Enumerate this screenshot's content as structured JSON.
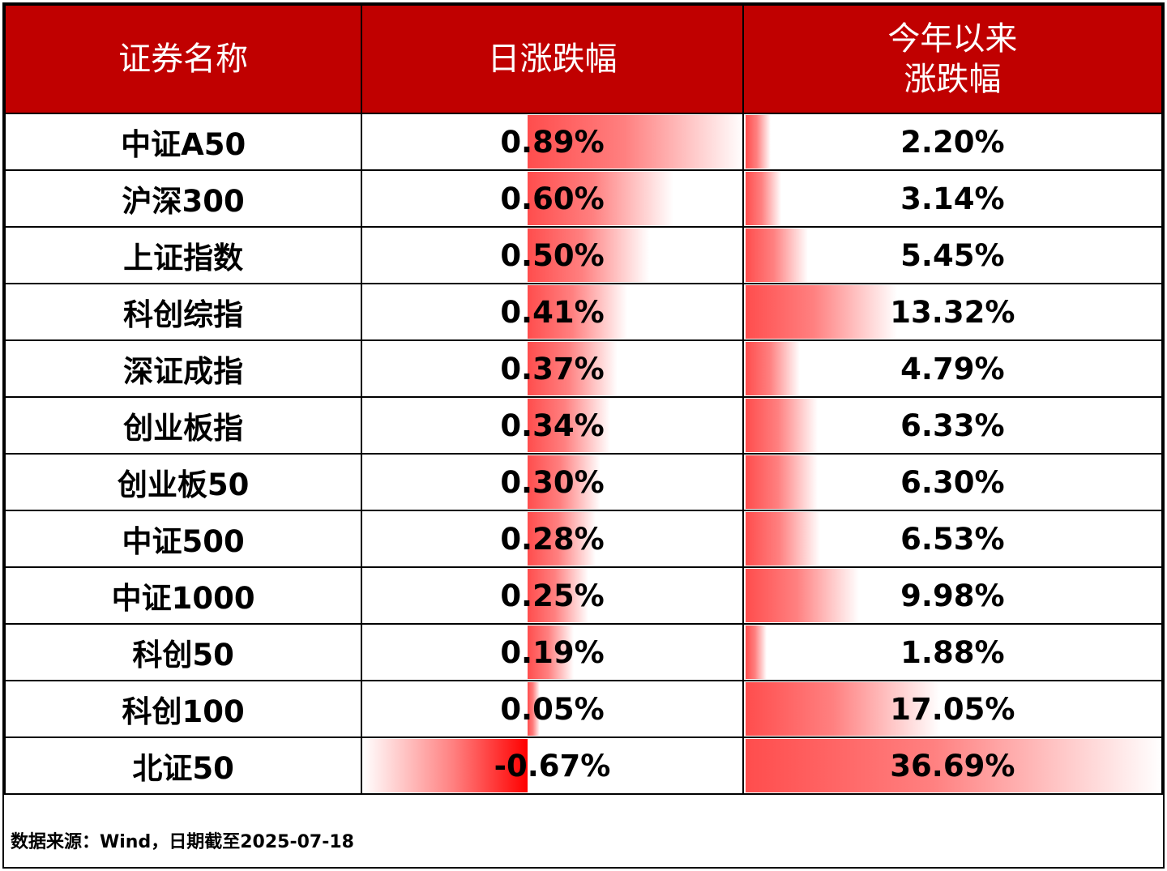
{
  "chart_data": {
    "type": "table",
    "columns": [
      "证券名称",
      "日涨跌幅",
      "今年以来\n涨跌幅"
    ],
    "rows": [
      {
        "name": "中证A50",
        "daily": 0.89,
        "daily_text": "0.89%",
        "ytd": 2.2,
        "ytd_text": "2.20%"
      },
      {
        "name": "沪深300",
        "daily": 0.6,
        "daily_text": "0.60%",
        "ytd": 3.14,
        "ytd_text": "3.14%"
      },
      {
        "name": "上证指数",
        "daily": 0.5,
        "daily_text": "0.50%",
        "ytd": 5.45,
        "ytd_text": "5.45%"
      },
      {
        "name": "科创综指",
        "daily": 0.41,
        "daily_text": "0.41%",
        "ytd": 13.32,
        "ytd_text": "13.32%"
      },
      {
        "name": "深证成指",
        "daily": 0.37,
        "daily_text": "0.37%",
        "ytd": 4.79,
        "ytd_text": "4.79%"
      },
      {
        "name": "创业板指",
        "daily": 0.34,
        "daily_text": "0.34%",
        "ytd": 6.33,
        "ytd_text": "6.33%"
      },
      {
        "name": "创业板50",
        "daily": 0.3,
        "daily_text": "0.30%",
        "ytd": 6.3,
        "ytd_text": "6.30%"
      },
      {
        "name": "中证500",
        "daily": 0.28,
        "daily_text": "0.28%",
        "ytd": 6.53,
        "ytd_text": "6.53%"
      },
      {
        "name": "中证1000",
        "daily": 0.25,
        "daily_text": "0.25%",
        "ytd": 9.98,
        "ytd_text": "9.98%"
      },
      {
        "name": "科创50",
        "daily": 0.19,
        "daily_text": "0.19%",
        "ytd": 1.88,
        "ytd_text": "1.88%"
      },
      {
        "name": "科创100",
        "daily": 0.05,
        "daily_text": "0.05%",
        "ytd": 17.05,
        "ytd_text": "17.05%"
      },
      {
        "name": "北证50",
        "daily": -0.67,
        "daily_text": "-0.67%",
        "ytd": 36.69,
        "ytd_text": "36.69%"
      }
    ],
    "colors": {
      "header_bg": "#c00000",
      "header_text": "#ffffff",
      "bar": "#ff4d4d",
      "bar_negative": "#ff0000"
    }
  },
  "footer": {
    "source": "数据来源：Wind，日期截至2025-07-18"
  }
}
